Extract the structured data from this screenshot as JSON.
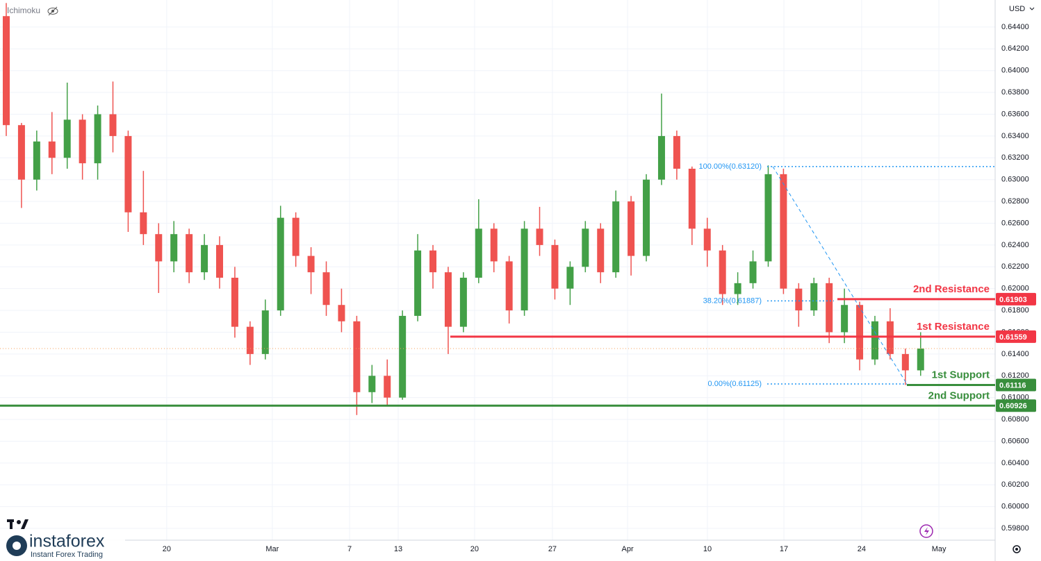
{
  "ui": {
    "indicator": "Ichimoku",
    "currency": "USD",
    "brand": "instaforex",
    "tagline": "Instant Forex Trading"
  },
  "chart_data": {
    "type": "candlestick",
    "up_color": "#43a047",
    "down_color": "#ef5350",
    "x": [
      0,
      1,
      2,
      3,
      4,
      5,
      6,
      7,
      8,
      9,
      10,
      11,
      12,
      13,
      14,
      15,
      16,
      17,
      18,
      19,
      20,
      21,
      22,
      23,
      24,
      25,
      26,
      27,
      28,
      29,
      30,
      31,
      32,
      33,
      34,
      35,
      36,
      37,
      38,
      39,
      40,
      41,
      42,
      43,
      44,
      45,
      46,
      47,
      48,
      49,
      50,
      51,
      52,
      53,
      54,
      55,
      56,
      57,
      58,
      59,
      60
    ],
    "open": [
      0.645,
      0.635,
      0.63,
      0.6335,
      0.632,
      0.6355,
      0.6315,
      0.636,
      0.634,
      0.627,
      0.625,
      0.6225,
      0.625,
      0.6215,
      0.624,
      0.621,
      0.6165,
      0.614,
      0.618,
      0.6265,
      0.623,
      0.6215,
      0.6185,
      0.617,
      0.6105,
      0.612,
      0.61,
      0.6175,
      0.6235,
      0.6215,
      0.6165,
      0.621,
      0.6255,
      0.6225,
      0.618,
      0.6255,
      0.624,
      0.62,
      0.622,
      0.6255,
      0.6215,
      0.628,
      0.623,
      0.63,
      0.634,
      0.631,
      0.6255,
      0.6235,
      0.6195,
      0.6205,
      0.6225,
      0.6305,
      0.62,
      0.618,
      0.6205,
      0.616,
      0.6185,
      0.6135,
      0.617,
      0.614,
      0.6125
    ],
    "high": [
      0.6462,
      0.6352,
      0.6345,
      0.6362,
      0.6389,
      0.636,
      0.6368,
      0.639,
      0.6345,
      0.6308,
      0.626,
      0.6262,
      0.6255,
      0.625,
      0.6248,
      0.622,
      0.617,
      0.619,
      0.6276,
      0.627,
      0.6238,
      0.6225,
      0.62,
      0.6175,
      0.613,
      0.6135,
      0.618,
      0.625,
      0.624,
      0.622,
      0.6215,
      0.6282,
      0.626,
      0.623,
      0.6262,
      0.6275,
      0.6245,
      0.6225,
      0.6262,
      0.626,
      0.629,
      0.6285,
      0.6305,
      0.6379,
      0.6345,
      0.6312,
      0.6265,
      0.624,
      0.6215,
      0.6235,
      0.6313,
      0.631,
      0.6205,
      0.621,
      0.621,
      0.62,
      0.6188,
      0.6175,
      0.6182,
      0.6145,
      0.616
    ],
    "low": [
      0.634,
      0.6274,
      0.629,
      0.6305,
      0.631,
      0.63,
      0.63,
      0.6325,
      0.6252,
      0.624,
      0.6196,
      0.6215,
      0.6205,
      0.6208,
      0.62,
      0.6155,
      0.613,
      0.6135,
      0.6175,
      0.622,
      0.6195,
      0.6175,
      0.616,
      0.6084,
      0.6095,
      0.6093,
      0.6098,
      0.617,
      0.62,
      0.614,
      0.616,
      0.6205,
      0.6215,
      0.6168,
      0.6175,
      0.623,
      0.619,
      0.6185,
      0.6215,
      0.6205,
      0.621,
      0.6212,
      0.6225,
      0.6295,
      0.63,
      0.624,
      0.622,
      0.6185,
      0.6185,
      0.62,
      0.622,
      0.6195,
      0.6165,
      0.6175,
      0.615,
      0.615,
      0.6125,
      0.613,
      0.6135,
      0.61116,
      0.612
    ],
    "close": [
      0.635,
      0.63,
      0.6335,
      0.632,
      0.6355,
      0.6315,
      0.636,
      0.634,
      0.627,
      0.625,
      0.6225,
      0.625,
      0.6215,
      0.624,
      0.621,
      0.6165,
      0.614,
      0.618,
      0.6265,
      0.623,
      0.6215,
      0.6185,
      0.617,
      0.6105,
      0.612,
      0.61,
      0.6175,
      0.6235,
      0.6215,
      0.6165,
      0.621,
      0.6255,
      0.6225,
      0.618,
      0.6255,
      0.624,
      0.62,
      0.622,
      0.6255,
      0.6215,
      0.628,
      0.623,
      0.63,
      0.634,
      0.631,
      0.6255,
      0.6235,
      0.6195,
      0.6205,
      0.6225,
      0.6305,
      0.62,
      0.618,
      0.6205,
      0.616,
      0.6185,
      0.6135,
      0.617,
      0.614,
      0.6125,
      0.6145
    ],
    "xlim": [
      -0.41,
      64.89
    ],
    "xticks": [
      {
        "value": 10.53,
        "label": "20"
      },
      {
        "value": 17.46,
        "label": "Mar"
      },
      {
        "value": 22.53,
        "label": "7"
      },
      {
        "value": 25.72,
        "label": "13"
      },
      {
        "value": 30.73,
        "label": "20"
      },
      {
        "value": 35.84,
        "label": "27"
      },
      {
        "value": 40.77,
        "label": "Apr"
      },
      {
        "value": 46.01,
        "label": "10"
      },
      {
        "value": 51.03,
        "label": "17"
      },
      {
        "value": 56.13,
        "label": "24"
      },
      {
        "value": 61.2,
        "label": "May"
      }
    ],
    "ylim": [
      0.59692,
      0.64648
    ],
    "yticks": [
      {
        "value": 0.598,
        "label": "0.59800"
      },
      {
        "value": 0.6,
        "label": "0.60000"
      },
      {
        "value": 0.602,
        "label": "0.60200"
      },
      {
        "value": 0.604,
        "label": "0.60400"
      },
      {
        "value": 0.606,
        "label": "0.60600"
      },
      {
        "value": 0.608,
        "label": "0.60800"
      },
      {
        "value": 0.61,
        "label": "0.61000"
      },
      {
        "value": 0.612,
        "label": "0.61200"
      },
      {
        "value": 0.614,
        "label": "0.61400"
      },
      {
        "value": 0.616,
        "label": "0.61600"
      },
      {
        "value": 0.618,
        "label": "0.61800"
      },
      {
        "value": 0.62,
        "label": "0.62000"
      },
      {
        "value": 0.622,
        "label": "0.62200"
      },
      {
        "value": 0.624,
        "label": "0.62400"
      },
      {
        "value": 0.626,
        "label": "0.62600"
      },
      {
        "value": 0.628,
        "label": "0.62800"
      },
      {
        "value": 0.63,
        "label": "0.63000"
      },
      {
        "value": 0.632,
        "label": "0.63200"
      },
      {
        "value": 0.634,
        "label": "0.63400"
      },
      {
        "value": 0.636,
        "label": "0.63600"
      },
      {
        "value": 0.638,
        "label": "0.63800"
      },
      {
        "value": 0.64,
        "label": "0.64000"
      },
      {
        "value": 0.642,
        "label": "0.64200"
      },
      {
        "value": 0.644,
        "label": "0.64400"
      }
    ],
    "levels": [
      {
        "name": "2nd Resistance",
        "value": 0.61903,
        "color": "#f23645"
      },
      {
        "name": "1st Resistance",
        "value": 0.61559,
        "color": "#f23645"
      },
      {
        "name": "1st Support",
        "value": 0.61116,
        "color": "#388e3c"
      },
      {
        "name": "2nd Support",
        "value": 0.60926,
        "color": "#388e3c"
      }
    ],
    "fib": [
      {
        "label": "100.00%(0.63120)",
        "value": 0.6312
      },
      {
        "label": "38.20%(0.61887)",
        "value": 0.61887
      },
      {
        "label": "0.00%(0.61125)",
        "value": 0.61125
      }
    ]
  }
}
